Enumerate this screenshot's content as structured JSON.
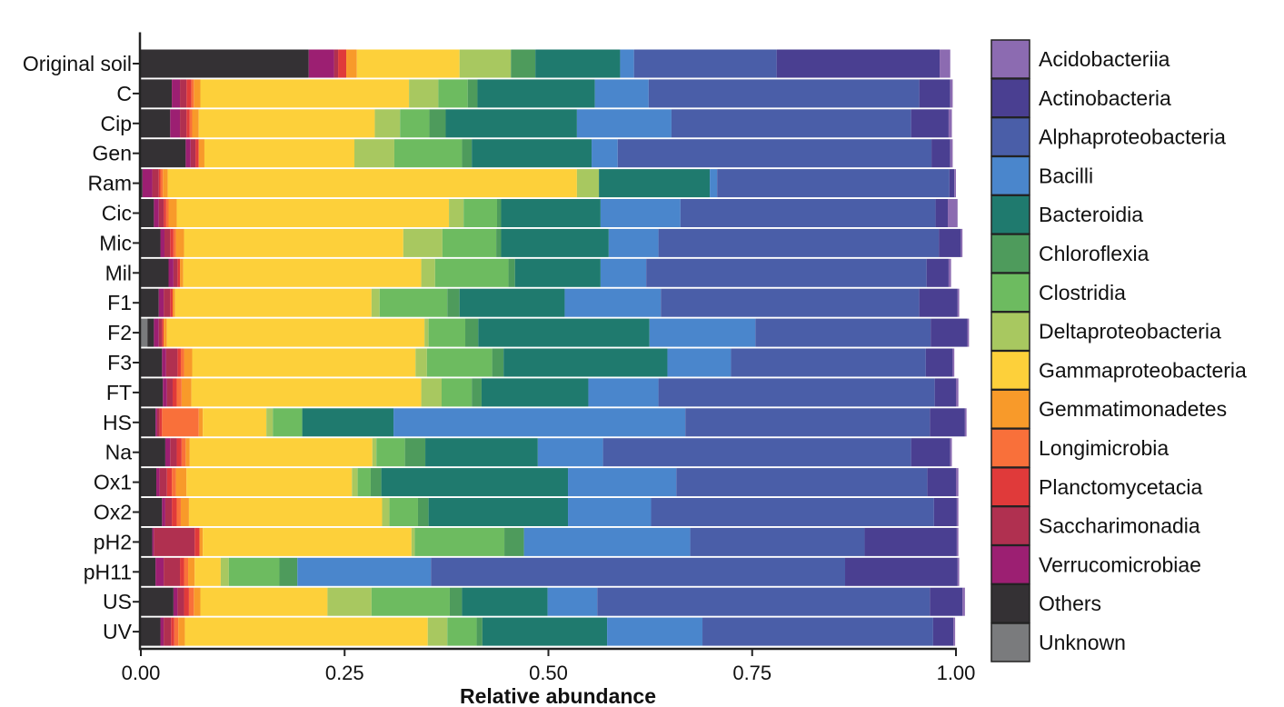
{
  "chart_data": {
    "type": "bar",
    "orientation": "horizontal",
    "stacked": true,
    "title": "",
    "xlabel": "Relative abundance",
    "ylabel": "",
    "xlim": [
      0,
      1
    ],
    "x_ticks": [
      0,
      0.25,
      0.5,
      0.75,
      1.0
    ],
    "x_tick_labels": [
      "0.00",
      "0.25",
      "0.50",
      "0.75",
      "1.00"
    ],
    "legend_position": "right",
    "categories": [
      "Original soil",
      "C",
      "Cip",
      "Gen",
      "Ram",
      "Cic",
      "Mic",
      "Mil",
      "F1",
      "F2",
      "F3",
      "FT",
      "HS",
      "Na",
      "Ox1",
      "Ox2",
      "pH2",
      "pH11",
      "US",
      "UV"
    ],
    "stack_order": [
      "Unknown",
      "Others",
      "Verrucomicrobiae",
      "Saccharimonadia",
      "Planctomycetacia",
      "Longimicrobia",
      "Gemmatimonadetes",
      "Gammaproteobacteria",
      "Deltaproteobacteria",
      "Clostridia",
      "Chloroflexia",
      "Bacteroidia",
      "Bacilli",
      "Alphaproteobacteria",
      "Actinobacteria",
      "Acidobacteriia"
    ],
    "series": [
      {
        "name": "Acidobacteriia",
        "color": "#8c6bb1",
        "values": [
          0.013,
          0.003,
          0.004,
          0.003,
          0.002,
          0.012,
          0.002,
          0.003,
          0.002,
          0.002,
          0.002,
          0.003,
          0.002,
          0.002,
          0.003,
          0.002,
          0.002,
          0.002,
          0.003,
          0.002
        ]
      },
      {
        "name": "Actinobacteria",
        "color": "#4a3f91",
        "values": [
          0.2,
          0.038,
          0.046,
          0.023,
          0.006,
          0.015,
          0.027,
          0.027,
          0.047,
          0.045,
          0.033,
          0.026,
          0.043,
          0.048,
          0.035,
          0.028,
          0.113,
          0.138,
          0.04,
          0.025
        ]
      },
      {
        "name": "Alphaproteobacteria",
        "color": "#4a5ea8",
        "values": [
          0.175,
          0.332,
          0.294,
          0.385,
          0.285,
          0.313,
          0.344,
          0.344,
          0.317,
          0.215,
          0.239,
          0.339,
          0.3,
          0.378,
          0.308,
          0.347,
          0.214,
          0.508,
          0.408,
          0.283
        ]
      },
      {
        "name": "Bacilli",
        "color": "#4a86cc",
        "values": [
          0.017,
          0.066,
          0.116,
          0.032,
          0.009,
          0.098,
          0.061,
          0.056,
          0.118,
          0.13,
          0.078,
          0.086,
          0.358,
          0.08,
          0.133,
          0.102,
          0.204,
          0.164,
          0.061,
          0.117
        ]
      },
      {
        "name": "Bacteroidia",
        "color": "#1f7a6e",
        "values": [
          0.104,
          0.144,
          0.161,
          0.147,
          0.136,
          0.122,
          0.132,
          0.105,
          0.129,
          0.21,
          0.201,
          0.131,
          0.112,
          0.138,
          0.229,
          0.171,
          0.0,
          0.0,
          0.105,
          0.153
        ]
      },
      {
        "name": "Chloroflexia",
        "color": "#4e9b5c",
        "values": [
          0.03,
          0.012,
          0.02,
          0.012,
          0.0,
          0.005,
          0.006,
          0.008,
          0.015,
          0.016,
          0.014,
          0.012,
          0.0,
          0.025,
          0.013,
          0.013,
          0.024,
          0.022,
          0.015,
          0.007
        ]
      },
      {
        "name": "Clostridia",
        "color": "#6dbb60",
        "values": [
          0.0,
          0.036,
          0.036,
          0.083,
          0.0,
          0.041,
          0.066,
          0.09,
          0.083,
          0.045,
          0.08,
          0.037,
          0.036,
          0.035,
          0.016,
          0.035,
          0.11,
          0.062,
          0.096,
          0.036
        ]
      },
      {
        "name": "Deltaproteobacteria",
        "color": "#a8c860",
        "values": [
          0.063,
          0.036,
          0.031,
          0.049,
          0.027,
          0.018,
          0.048,
          0.017,
          0.01,
          0.005,
          0.014,
          0.025,
          0.008,
          0.005,
          0.007,
          0.009,
          0.004,
          0.01,
          0.054,
          0.024
        ]
      },
      {
        "name": "Gammaproteobacteria",
        "color": "#fdd03a",
        "values": [
          0.126,
          0.256,
          0.216,
          0.184,
          0.502,
          0.334,
          0.269,
          0.292,
          0.241,
          0.316,
          0.274,
          0.282,
          0.078,
          0.224,
          0.203,
          0.237,
          0.256,
          0.032,
          0.156,
          0.298
        ]
      },
      {
        "name": "Gemmatimonadetes",
        "color": "#f89a2a",
        "values": [
          0.013,
          0.008,
          0.008,
          0.007,
          0.006,
          0.01,
          0.01,
          0.004,
          0.003,
          0.004,
          0.01,
          0.012,
          0.005,
          0.005,
          0.013,
          0.01,
          0.004,
          0.008,
          0.008,
          0.008
        ]
      },
      {
        "name": "Longimicrobia",
        "color": "#f9703a",
        "values": [
          0.0,
          0.003,
          0.003,
          0.0,
          0.003,
          0.003,
          0.003,
          0.0,
          0.0,
          0.0,
          0.004,
          0.006,
          0.045,
          0.005,
          0.005,
          0.005,
          0.0,
          0.005,
          0.006,
          0.005
        ]
      },
      {
        "name": "Planctomycetacia",
        "color": "#e03a3a",
        "values": [
          0.01,
          0.006,
          0.004,
          0.004,
          0.002,
          0.003,
          0.004,
          0.003,
          0.003,
          0.002,
          0.004,
          0.005,
          0.003,
          0.006,
          0.006,
          0.006,
          0.006,
          0.005,
          0.006,
          0.004
        ]
      },
      {
        "name": "Saccharimonadia",
        "color": "#b03050",
        "values": [
          0.005,
          0.008,
          0.008,
          0.006,
          0.008,
          0.006,
          0.007,
          0.005,
          0.008,
          0.004,
          0.014,
          0.007,
          0.003,
          0.008,
          0.009,
          0.008,
          0.05,
          0.02,
          0.008,
          0.009
        ]
      },
      {
        "name": "Verrucomicrobiae",
        "color": "#9c1f72",
        "values": [
          0.031,
          0.01,
          0.012,
          0.006,
          0.012,
          0.006,
          0.005,
          0.006,
          0.006,
          0.006,
          0.005,
          0.005,
          0.002,
          0.006,
          0.004,
          0.004,
          0.002,
          0.01,
          0.005,
          0.004
        ]
      },
      {
        "name": "Others",
        "color": "#343134",
        "values": [
          0.206,
          0.038,
          0.036,
          0.055,
          0.002,
          0.016,
          0.024,
          0.034,
          0.022,
          0.008,
          0.026,
          0.027,
          0.018,
          0.03,
          0.019,
          0.026,
          0.014,
          0.018,
          0.04,
          0.024
        ]
      },
      {
        "name": "Unknown",
        "color": "#7a7b7d",
        "values": [
          0.0,
          0.0,
          0.0,
          0.0,
          0.0,
          0.0,
          0.0,
          0.0,
          0.0,
          0.008,
          0.0,
          0.0,
          0.0,
          0.0,
          0.0,
          0.0,
          0.0,
          0.0,
          0.0,
          0.0
        ]
      }
    ]
  }
}
